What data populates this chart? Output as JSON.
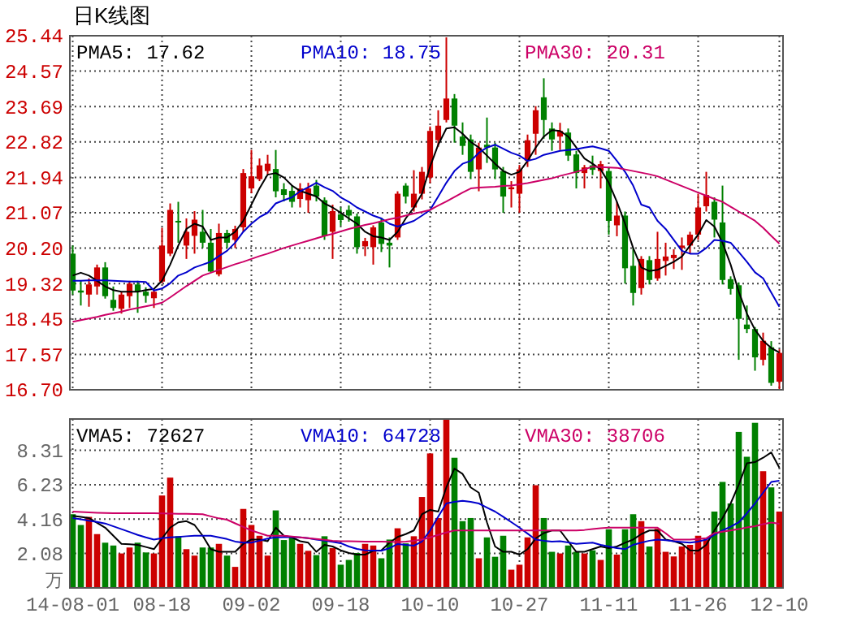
{
  "chart_data": [
    {
      "type": "candlestick",
      "title": "日K线图",
      "legend": "top",
      "grid": true,
      "tick_labels": "y",
      "categories": [
        null,
        null,
        null,
        null,
        null,
        null,
        null,
        null,
        null,
        null,
        null,
        null,
        null,
        null,
        null,
        null,
        null,
        null,
        null,
        null,
        null,
        null,
        null,
        null,
        null,
        null,
        null,
        null,
        null,
        null,
        null,
        null,
        null,
        null,
        null,
        null,
        null,
        null,
        null,
        null,
        null,
        null,
        null,
        null,
        null,
        null,
        null,
        null,
        null,
        null,
        null,
        null,
        null,
        null,
        null,
        null,
        null,
        null,
        null,
        null,
        null,
        null,
        null,
        null,
        null,
        null,
        null,
        null,
        null,
        null,
        null,
        null,
        null,
        null,
        null,
        null,
        null,
        null,
        null,
        null,
        null,
        null,
        null,
        null,
        null,
        null,
        null,
        null
      ],
      "ylim": [
        16.7,
        25.44
      ],
      "yticks": [
        {
          "value": 16.7,
          "label": "16.70"
        },
        17.57,
        18.45,
        19.32,
        {
          "value": 20.2,
          "label": "20.20"
        },
        21.07,
        21.94,
        22.82,
        23.69,
        24.57,
        25.44
      ],
      "ohlc": [
        [
          20.06,
          20.26,
          19.05,
          19.15
        ],
        [
          19.15,
          19.39,
          18.78,
          19.1
        ],
        [
          19.05,
          19.45,
          18.75,
          19.3
        ],
        [
          19.25,
          19.79,
          19.05,
          19.72
        ],
        [
          19.72,
          19.85,
          18.95,
          19.01
        ],
        [
          18.92,
          19.25,
          18.65,
          18.72
        ],
        [
          18.7,
          19.12,
          18.58,
          19.05
        ],
        [
          19.01,
          19.39,
          18.72,
          19.32
        ],
        [
          19.3,
          19.39,
          18.6,
          19.12
        ],
        [
          19.12,
          19.23,
          18.85,
          19.02
        ],
        [
          18.96,
          19.18,
          18.72,
          19.12
        ],
        [
          19.37,
          20.7,
          19.33,
          20.26
        ],
        [
          20.06,
          21.3,
          20.0,
          21.14
        ],
        [
          20.87,
          21.34,
          20.33,
          20.84
        ],
        [
          20.26,
          20.93,
          19.93,
          20.6
        ],
        [
          20.5,
          21.11,
          20.06,
          20.9
        ],
        [
          20.6,
          21.14,
          20.2,
          20.33
        ],
        [
          20.33,
          20.67,
          19.6,
          19.62
        ],
        [
          19.55,
          20.8,
          19.5,
          20.57
        ],
        [
          20.57,
          20.65,
          20.2,
          20.33
        ],
        [
          20.4,
          20.75,
          20.2,
          20.67
        ],
        [
          20.71,
          22.15,
          20.6,
          22.05
        ],
        [
          21.67,
          22.62,
          21.55,
          21.97
        ],
        [
          21.9,
          22.41,
          21.85,
          22.24
        ],
        [
          22.1,
          22.5,
          22.0,
          22.28
        ],
        [
          22.15,
          22.62,
          21.45,
          21.6
        ],
        [
          21.65,
          21.8,
          21.35,
          21.51
        ],
        [
          21.61,
          21.75,
          21.2,
          21.34
        ],
        [
          21.41,
          21.8,
          21.2,
          21.67
        ],
        [
          21.38,
          21.81,
          21.07,
          21.67
        ],
        [
          21.74,
          21.88,
          21.35,
          21.47
        ],
        [
          21.38,
          21.45,
          20.4,
          20.49
        ],
        [
          20.6,
          21.27,
          19.93,
          21.11
        ],
        [
          21.03,
          21.2,
          20.75,
          20.89
        ],
        [
          21.14,
          21.25,
          20.85,
          21.0
        ],
        [
          20.98,
          21.05,
          20.06,
          20.22
        ],
        [
          20.24,
          20.45,
          20.0,
          20.37
        ],
        [
          20.22,
          20.76,
          19.79,
          20.71
        ],
        [
          20.83,
          20.95,
          20.1,
          20.3
        ],
        [
          20.33,
          20.46,
          19.72,
          20.26
        ],
        [
          20.46,
          21.6,
          20.4,
          21.54
        ],
        [
          21.74,
          21.8,
          21.3,
          21.47
        ],
        [
          21.2,
          22.12,
          21.1,
          21.54
        ],
        [
          21.54,
          22.2,
          21.4,
          22.08
        ],
        [
          21.94,
          23.2,
          21.8,
          23.09
        ],
        [
          22.86,
          23.6,
          22.7,
          23.22
        ],
        [
          23.36,
          25.4,
          23.3,
          23.89
        ],
        [
          23.89,
          24.0,
          22.8,
          23.22
        ],
        [
          22.95,
          23.3,
          22.5,
          22.72
        ],
        [
          22.88,
          23.0,
          21.9,
          22.08
        ],
        [
          22.14,
          22.8,
          21.6,
          22.68
        ],
        [
          22.75,
          23.42,
          22.3,
          22.68
        ],
        [
          22.68,
          22.8,
          21.9,
          22.14
        ],
        [
          22.1,
          22.2,
          21.07,
          21.47
        ],
        [
          21.65,
          21.85,
          21.2,
          21.7
        ],
        [
          21.54,
          22.25,
          21.07,
          22.14
        ],
        [
          22.35,
          23.0,
          22.2,
          22.86
        ],
        [
          23.02,
          23.7,
          22.5,
          23.6
        ],
        [
          23.92,
          24.39,
          22.9,
          23.36
        ],
        [
          23.15,
          23.3,
          22.6,
          22.88
        ],
        [
          22.95,
          23.29,
          22.62,
          23.09
        ],
        [
          23.05,
          23.15,
          22.35,
          22.48
        ],
        [
          22.51,
          22.6,
          21.67,
          22.05
        ],
        [
          22.05,
          22.25,
          21.67,
          22.19
        ],
        [
          22.24,
          22.48,
          22.0,
          22.13
        ],
        [
          22.1,
          22.35,
          21.67,
          22.27
        ],
        [
          22.1,
          22.2,
          20.53,
          20.87
        ],
        [
          20.76,
          21.34,
          20.49,
          21.0
        ],
        [
          21.0,
          21.1,
          19.32,
          19.7
        ],
        [
          19.76,
          20.2,
          18.78,
          19.09
        ],
        [
          19.21,
          20.0,
          19.05,
          19.93
        ],
        [
          19.9,
          20.0,
          19.3,
          19.41
        ],
        [
          19.45,
          20.6,
          19.39,
          19.93
        ],
        [
          19.88,
          20.33,
          19.52,
          19.99
        ],
        [
          19.95,
          20.17,
          19.68,
          20.03
        ],
        [
          20.2,
          20.46,
          19.66,
          20.26
        ],
        [
          20.26,
          20.6,
          20.06,
          20.53
        ],
        [
          20.53,
          21.54,
          20.4,
          21.2
        ],
        [
          21.23,
          22.08,
          21.1,
          21.51
        ],
        [
          21.34,
          21.45,
          20.46,
          20.9
        ],
        [
          20.83,
          21.74,
          19.3,
          19.41
        ],
        [
          19.43,
          19.5,
          19.05,
          19.19
        ],
        [
          19.28,
          19.35,
          17.44,
          18.45
        ],
        [
          18.31,
          18.78,
          18.1,
          18.2
        ],
        [
          18.2,
          18.25,
          17.17,
          17.5
        ],
        [
          17.44,
          18.11,
          17.3,
          17.91
        ],
        [
          17.75,
          17.9,
          16.8,
          16.87
        ],
        [
          16.9,
          17.7,
          16.72,
          17.61
        ]
      ],
      "colors": [
        "#008000",
        "#008000",
        "#cc0000",
        "#cc0000",
        "#008000",
        "#008000",
        "#cc0000",
        "#cc0000",
        "#008000",
        "#008000",
        "#cc0000",
        "#cc0000",
        "#cc0000",
        "#008000",
        "#cc0000",
        "#cc0000",
        "#008000",
        "#008000",
        "#cc0000",
        "#008000",
        "#cc0000",
        "#cc0000",
        "#cc0000",
        "#cc0000",
        "#cc0000",
        "#008000",
        "#008000",
        "#008000",
        "#cc0000",
        "#cc0000",
        "#008000",
        "#008000",
        "#cc0000",
        "#008000",
        "#008000",
        "#008000",
        "#cc0000",
        "#cc0000",
        "#008000",
        "#008000",
        "#cc0000",
        "#008000",
        "#cc0000",
        "#cc0000",
        "#cc0000",
        "#cc0000",
        "#cc0000",
        "#008000",
        "#008000",
        "#008000",
        "#cc0000",
        "#008000",
        "#008000",
        "#008000",
        "#cc0000",
        "#cc0000",
        "#cc0000",
        "#cc0000",
        "#008000",
        "#008000",
        "#cc0000",
        "#008000",
        "#008000",
        "#cc0000",
        "#008000",
        "#cc0000",
        "#008000",
        "#cc0000",
        "#008000",
        "#008000",
        "#cc0000",
        "#008000",
        "#cc0000",
        "#cc0000",
        "#cc0000",
        "#cc0000",
        "#cc0000",
        "#cc0000",
        "#cc0000",
        "#008000",
        "#008000",
        "#008000",
        "#008000",
        "#008000",
        "#008000",
        "#cc0000",
        "#008000",
        "#cc0000"
      ],
      "series": [
        {
          "type": "line",
          "name": "PMA5: 17.62",
          "color": "#000000",
          "values": [
            19.52,
            19.59,
            19.52,
            19.39,
            19.25,
            19.16,
            19.12,
            19.12,
            19.12,
            19.16,
            19.19,
            19.39,
            19.79,
            20.26,
            20.67,
            20.8,
            20.73,
            20.4,
            20.46,
            20.46,
            20.6,
            20.87,
            21.27,
            21.67,
            22.01,
            22.05,
            21.94,
            21.74,
            21.61,
            21.54,
            21.47,
            21.3,
            21.2,
            21.07,
            20.93,
            20.8,
            20.6,
            20.49,
            20.46,
            20.4,
            20.6,
            20.93,
            21.2,
            21.54,
            22.21,
            22.75,
            23.15,
            23.18,
            23.02,
            22.82,
            22.68,
            22.48,
            22.28,
            22.1,
            22.01,
            22.08,
            22.35,
            22.68,
            22.95,
            23.11,
            23.09,
            22.95,
            22.68,
            22.41,
            22.28,
            22.14,
            21.81,
            21.34,
            20.8,
            20.2,
            19.72,
            19.63,
            19.66,
            19.76,
            19.86,
            19.99,
            20.26,
            20.53,
            20.89,
            20.73,
            20.33,
            19.79,
            19.12,
            18.58,
            18.18,
            17.91,
            17.73,
            17.62
          ]
        },
        {
          "type": "line",
          "name": "PMA10: 18.75",
          "color": "#0000cc",
          "values": [
            19.39,
            19.39,
            19.4,
            19.4,
            19.4,
            19.39,
            19.38,
            19.37,
            19.37,
            19.36,
            19.15,
            19.2,
            19.33,
            19.52,
            19.6,
            19.72,
            19.79,
            19.86,
            20.0,
            20.13,
            20.33,
            20.6,
            20.8,
            20.96,
            21.07,
            21.3,
            21.38,
            21.45,
            21.6,
            21.7,
            21.81,
            21.7,
            21.61,
            21.45,
            21.34,
            21.2,
            21.1,
            21.0,
            20.93,
            20.8,
            20.73,
            20.8,
            20.87,
            21.0,
            21.14,
            21.47,
            21.81,
            22.1,
            22.28,
            22.35,
            22.55,
            22.68,
            22.75,
            22.65,
            22.55,
            22.48,
            22.35,
            22.4,
            22.5,
            22.55,
            22.6,
            22.62,
            22.64,
            22.68,
            22.71,
            22.66,
            22.6,
            22.35,
            22.08,
            21.74,
            21.27,
            21.2,
            20.87,
            20.67,
            20.4,
            20.13,
            20.06,
            20.06,
            20.2,
            20.4,
            20.38,
            20.33,
            20.1,
            19.86,
            19.6,
            19.45,
            19.1,
            18.75
          ]
        },
        {
          "type": "line",
          "name": "PMA30: 20.31",
          "color": "#cc0066",
          "values": [
            18.38,
            18.42,
            18.46,
            18.5,
            18.55,
            18.59,
            18.63,
            18.68,
            18.72,
            18.76,
            18.8,
            18.85,
            18.98,
            19.12,
            19.26,
            19.39,
            19.52,
            19.59,
            19.66,
            19.73,
            19.8,
            19.86,
            19.93,
            20.0,
            20.06,
            20.13,
            20.2,
            20.26,
            20.32,
            20.38,
            20.44,
            20.5,
            20.55,
            20.61,
            20.67,
            20.72,
            20.77,
            20.81,
            20.86,
            20.91,
            20.95,
            21.0,
            21.05,
            21.09,
            21.14,
            21.25,
            21.35,
            21.46,
            21.57,
            21.67,
            21.69,
            21.7,
            21.71,
            21.73,
            21.74,
            21.77,
            21.8,
            21.84,
            21.88,
            21.92,
            21.98,
            22.03,
            22.08,
            22.14,
            22.21,
            22.2,
            22.19,
            22.18,
            22.14,
            22.1,
            22.06,
            22.02,
            21.97,
            21.89,
            21.81,
            21.73,
            21.65,
            21.57,
            21.49,
            21.41,
            21.34,
            21.22,
            21.1,
            20.99,
            20.87,
            20.7,
            20.5,
            20.31
          ]
        }
      ]
    },
    {
      "type": "bar",
      "legend": "top",
      "grid": true,
      "ylabel": "万",
      "categories": [
        "14-08-01",
        null,
        null,
        null,
        null,
        null,
        null,
        null,
        null,
        null,
        null,
        "08-18",
        null,
        null,
        null,
        null,
        null,
        null,
        null,
        null,
        null,
        null,
        "09-02",
        null,
        null,
        null,
        null,
        null,
        null,
        null,
        null,
        null,
        null,
        "09-18",
        null,
        null,
        null,
        null,
        null,
        null,
        null,
        null,
        null,
        null,
        "10-10",
        null,
        null,
        null,
        null,
        null,
        null,
        null,
        null,
        null,
        null,
        "10-27",
        null,
        null,
        null,
        null,
        null,
        null,
        null,
        null,
        null,
        null,
        "11-11",
        null,
        null,
        null,
        null,
        null,
        null,
        null,
        null,
        null,
        null,
        "11-26",
        null,
        null,
        null,
        null,
        null,
        null,
        null,
        null,
        null,
        "12-10"
      ],
      "ylim": [
        0,
        10.2
      ],
      "yticks": [
        2.08,
        4.16,
        6.23,
        8.31
      ],
      "values": [
        4.45,
        3.8,
        4.29,
        3.25,
        2.73,
        2.56,
        2.08,
        2.44,
        2.73,
        2.14,
        2.08,
        5.58,
        6.66,
        3.12,
        2.34,
        1.95,
        2.44,
        2.44,
        2.66,
        1.95,
        1.27,
        4.77,
        3.8,
        3.15,
        1.95,
        4.68,
        2.89,
        3.05,
        2.66,
        2.24,
        1.98,
        3.12,
        2.4,
        1.4,
        1.69,
        2.11,
        2.66,
        2.56,
        1.79,
        2.92,
        3.6,
        2.69,
        3.12,
        5.49,
        8.12,
        4.22,
        10.2,
        7.86,
        4.03,
        4.22,
        1.79,
        3.05,
        1.88,
        3.15,
        1.1,
        1.4,
        3.05,
        6.2,
        4.22,
        2.18,
        2.08,
        2.56,
        2.18,
        2.08,
        2.27,
        1.69,
        3.54,
        2.01,
        3.54,
        4.45,
        4.03,
        2.5,
        3.57,
        2.18,
        1.9,
        2.5,
        2.6,
        3.15,
        2.92,
        4.61,
        6.4,
        5.1,
        9.42,
        7.92,
        9.97,
        7.05,
        6.07,
        4.61
      ],
      "colors": [
        "#008000",
        "#008000",
        "#cc0000",
        "#cc0000",
        "#008000",
        "#008000",
        "#cc0000",
        "#cc0000",
        "#008000",
        "#008000",
        "#cc0000",
        "#cc0000",
        "#cc0000",
        "#008000",
        "#cc0000",
        "#cc0000",
        "#008000",
        "#008000",
        "#cc0000",
        "#008000",
        "#cc0000",
        "#cc0000",
        "#cc0000",
        "#cc0000",
        "#cc0000",
        "#008000",
        "#008000",
        "#008000",
        "#cc0000",
        "#cc0000",
        "#008000",
        "#008000",
        "#cc0000",
        "#008000",
        "#008000",
        "#008000",
        "#cc0000",
        "#cc0000",
        "#008000",
        "#008000",
        "#cc0000",
        "#008000",
        "#cc0000",
        "#cc0000",
        "#cc0000",
        "#cc0000",
        "#cc0000",
        "#008000",
        "#008000",
        "#008000",
        "#cc0000",
        "#008000",
        "#008000",
        "#008000",
        "#cc0000",
        "#cc0000",
        "#cc0000",
        "#cc0000",
        "#008000",
        "#008000",
        "#cc0000",
        "#008000",
        "#008000",
        "#cc0000",
        "#008000",
        "#cc0000",
        "#008000",
        "#cc0000",
        "#008000",
        "#008000",
        "#cc0000",
        "#008000",
        "#cc0000",
        "#cc0000",
        "#cc0000",
        "#cc0000",
        "#cc0000",
        "#cc0000",
        "#cc0000",
        "#008000",
        "#008000",
        "#008000",
        "#008000",
        "#008000",
        "#008000",
        "#cc0000",
        "#008000",
        "#cc0000"
      ],
      "series": [
        {
          "type": "line",
          "name": "VMA5: 72627",
          "color": "#000000",
          "values": [
            4.35,
            4.29,
            4.22,
            3.93,
            3.64,
            3.15,
            2.66,
            2.63,
            2.6,
            2.47,
            2.34,
            2.99,
            3.64,
            3.96,
            4.03,
            3.8,
            3.15,
            2.34,
            2.18,
            2.18,
            2.18,
            2.66,
            2.92,
            2.92,
            2.82,
            3.64,
            3.15,
            3.05,
            2.82,
            2.73,
            2.18,
            2.6,
            2.5,
            2.27,
            2.11,
            2.01,
            2.01,
            2.24,
            2.27,
            2.73,
            3.08,
            3.25,
            3.47,
            4.45,
            4.71,
            4.61,
            6.07,
            7.21,
            6.88,
            6.07,
            5.75,
            3.96,
            2.5,
            2.18,
            2.18,
            2.01,
            2.34,
            2.99,
            3.31,
            3.47,
            3.47,
            2.82,
            2.18,
            2.18,
            2.34,
            2.5,
            2.4,
            2.5,
            2.73,
            2.92,
            3.25,
            3.47,
            3.47,
            2.92,
            2.82,
            2.66,
            2.27,
            2.24,
            2.6,
            3.47,
            4.22,
            5.1,
            6.23,
            7.53,
            7.6,
            7.86,
            8.18,
            7.26
          ]
        },
        {
          "type": "line",
          "name": "VMA10: 64728",
          "color": "#0000cc",
          "values": [
            4.22,
            4.14,
            4.06,
            3.98,
            3.89,
            3.72,
            3.55,
            3.38,
            3.2,
            3.05,
            2.92,
            3.0,
            3.05,
            3.08,
            3.12,
            3.15,
            3.15,
            3.15,
            3.05,
            2.95,
            2.8,
            2.73,
            2.73,
            2.85,
            2.98,
            3.05,
            3.07,
            3.07,
            3.05,
            3.0,
            2.92,
            2.85,
            2.78,
            2.7,
            2.5,
            2.35,
            2.27,
            2.25,
            2.24,
            2.4,
            2.65,
            2.6,
            2.55,
            2.8,
            3.47,
            4.3,
            5.1,
            5.2,
            5.26,
            5.2,
            5.1,
            4.85,
            4.61,
            4.3,
            3.97,
            3.64,
            3.28,
            2.92,
            2.85,
            2.8,
            2.82,
            2.75,
            2.66,
            2.7,
            2.73,
            2.6,
            2.5,
            2.4,
            2.34,
            2.6,
            2.73,
            2.85,
            2.92,
            2.88,
            2.82,
            2.77,
            2.73,
            2.8,
            2.92,
            3.2,
            3.47,
            3.7,
            3.96,
            4.5,
            5.1,
            5.75,
            6.4,
            6.47
          ]
        },
        {
          "type": "line",
          "name": "VMA30: 38706",
          "color": "#cc0066",
          "values": [
            4.61,
            4.58,
            4.56,
            4.54,
            4.52,
            4.51,
            4.51,
            4.51,
            4.51,
            4.51,
            4.51,
            4.5,
            4.49,
            4.48,
            4.47,
            4.46,
            4.45,
            4.32,
            4.2,
            4.12,
            3.9,
            3.68,
            3.47,
            3.31,
            3.15,
            3.15,
            3.15,
            3.1,
            3.05,
            3.0,
            2.95,
            2.9,
            2.85,
            2.82,
            2.82,
            2.81,
            2.8,
            2.79,
            2.79,
            2.78,
            2.77,
            2.8,
            2.85,
            2.92,
            3.05,
            3.2,
            3.35,
            3.47,
            3.47,
            3.47,
            3.47,
            3.47,
            3.47,
            3.47,
            3.47,
            3.47,
            3.47,
            3.47,
            3.47,
            3.47,
            3.47,
            3.47,
            3.47,
            3.5,
            3.55,
            3.6,
            3.64,
            3.64,
            3.64,
            3.64,
            3.64,
            3.64,
            3.64,
            3.3,
            2.92,
            2.92,
            2.92,
            2.95,
            3.0,
            3.31,
            3.4,
            3.47,
            3.55,
            3.65,
            3.73,
            3.85,
            3.95,
            3.87
          ]
        }
      ]
    }
  ]
}
